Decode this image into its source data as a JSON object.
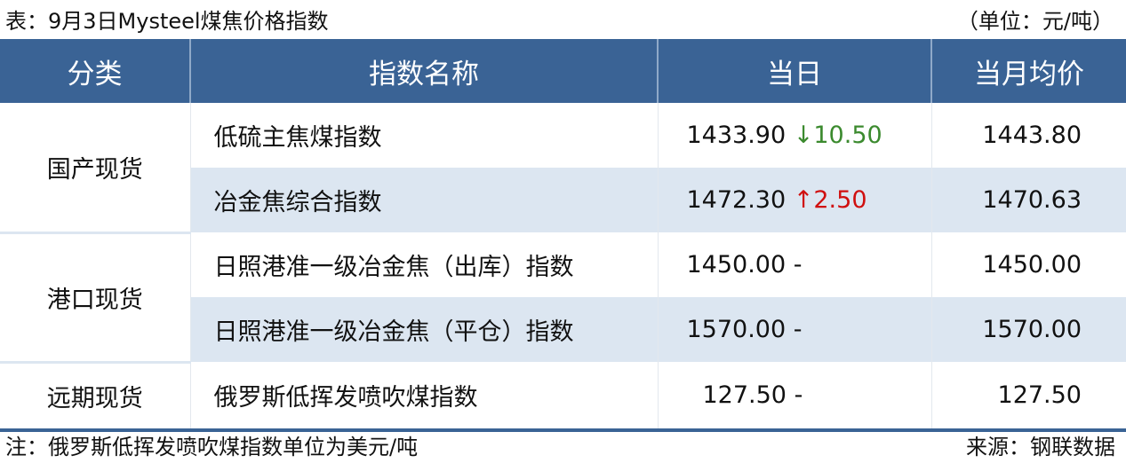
{
  "title": "表：9月3日Mysteel煤焦价格指数",
  "unit": "（单位：元/吨）",
  "columns": [
    "分类",
    "指数名称",
    "当日",
    "当月均价"
  ],
  "groups": [
    {
      "category": "国产现货",
      "rows": [
        {
          "name": "低硫主焦煤指数",
          "day": "1433.90",
          "change_arrow": "↓",
          "change": "10.50",
          "direction": "down",
          "avg": "1443.80"
        },
        {
          "name": "冶金焦综合指数",
          "day": "1472.30",
          "change_arrow": "↑",
          "change": "2.50",
          "direction": "up",
          "avg": "1470.63"
        }
      ]
    },
    {
      "category": "港口现货",
      "rows": [
        {
          "name": "日照港准一级冶金焦（出库）指数",
          "day": "1450.00",
          "change_arrow": "",
          "change": "-",
          "direction": "flat",
          "avg": "1450.00"
        },
        {
          "name": "日照港准一级冶金焦（平仓）指数",
          "day": "1570.00",
          "change_arrow": "",
          "change": "-",
          "direction": "flat",
          "avg": "1570.00"
        }
      ]
    },
    {
      "category": "远期现货",
      "rows": [
        {
          "name": "俄罗斯低挥发喷吹煤指数",
          "day": "127.50",
          "change_arrow": "",
          "change": "-",
          "direction": "flat",
          "avg": "127.50"
        }
      ]
    }
  ],
  "note": "注：俄罗斯低挥发喷吹煤指数单位为美元/吨",
  "source": "来源：钢联数据",
  "colors": {
    "header": "#3a6395",
    "stripe": "#dce6f1",
    "down": "#3b8a2e",
    "up": "#d01010"
  }
}
